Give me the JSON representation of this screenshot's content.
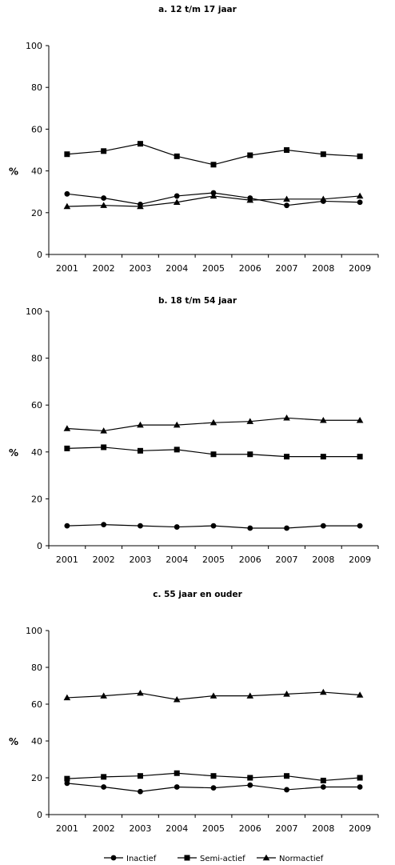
{
  "chart_data": [
    {
      "type": "line",
      "title": "a. 12 t/m 17 jaar",
      "ylabel": "%",
      "ylim": [
        0,
        100
      ],
      "yticks": [
        0,
        20,
        40,
        60,
        80,
        100
      ],
      "categories": [
        "2001",
        "2002",
        "2003",
        "2004",
        "2005",
        "2006",
        "2007",
        "2008",
        "2009"
      ],
      "series": [
        {
          "name": "Inactief",
          "marker": "circle",
          "values": [
            29,
            27,
            24,
            28,
            29.5,
            27,
            23.5,
            25.5,
            25
          ]
        },
        {
          "name": "Semi-actief",
          "marker": "square",
          "values": [
            48,
            49.5,
            53,
            47,
            43,
            47.5,
            50,
            48,
            47
          ]
        },
        {
          "name": "Normactief",
          "marker": "triangle",
          "values": [
            23,
            23.5,
            23,
            25,
            28,
            26,
            26.5,
            26.5,
            28
          ]
        }
      ]
    },
    {
      "type": "line",
      "title": "b. 18 t/m 54 jaar",
      "ylabel": "%",
      "ylim": [
        0,
        100
      ],
      "yticks": [
        0,
        20,
        40,
        60,
        80,
        100
      ],
      "categories": [
        "2001",
        "2002",
        "2003",
        "2004",
        "2005",
        "2006",
        "2007",
        "2008",
        "2009"
      ],
      "series": [
        {
          "name": "Inactief",
          "marker": "circle",
          "values": [
            8.5,
            9,
            8.5,
            8,
            8.5,
            7.5,
            7.5,
            8.5,
            8.5
          ]
        },
        {
          "name": "Semi-actief",
          "marker": "square",
          "values": [
            41.5,
            42,
            40.5,
            41,
            39,
            39,
            38,
            38,
            38
          ]
        },
        {
          "name": "Normactief",
          "marker": "triangle",
          "values": [
            50,
            49,
            51.5,
            51.5,
            52.5,
            53,
            54.5,
            53.5,
            53.5
          ]
        }
      ]
    },
    {
      "type": "line",
      "title": "c. 55 jaar en ouder",
      "ylabel": "%",
      "ylim": [
        0,
        100
      ],
      "yticks": [
        0,
        20,
        40,
        60,
        80,
        100
      ],
      "categories": [
        "2001",
        "2002",
        "2003",
        "2004",
        "2005",
        "2006",
        "2007",
        "2008",
        "2009"
      ],
      "series": [
        {
          "name": "Inactief",
          "marker": "circle",
          "values": [
            17,
            15,
            12.5,
            15,
            14.5,
            16,
            13.5,
            15,
            15
          ]
        },
        {
          "name": "Semi-actief",
          "marker": "square",
          "values": [
            19.5,
            20.5,
            21,
            22.5,
            21,
            20,
            21,
            18.5,
            20
          ]
        },
        {
          "name": "Normactief",
          "marker": "triangle",
          "values": [
            63.5,
            64.5,
            66,
            62.5,
            64.5,
            64.5,
            65.5,
            66.5,
            65
          ]
        }
      ]
    }
  ],
  "legend": {
    "items": [
      {
        "label": "Inactief",
        "marker": "circle"
      },
      {
        "label": "Semi-actief",
        "marker": "square"
      },
      {
        "label": "Normactief",
        "marker": "triangle"
      }
    ]
  }
}
